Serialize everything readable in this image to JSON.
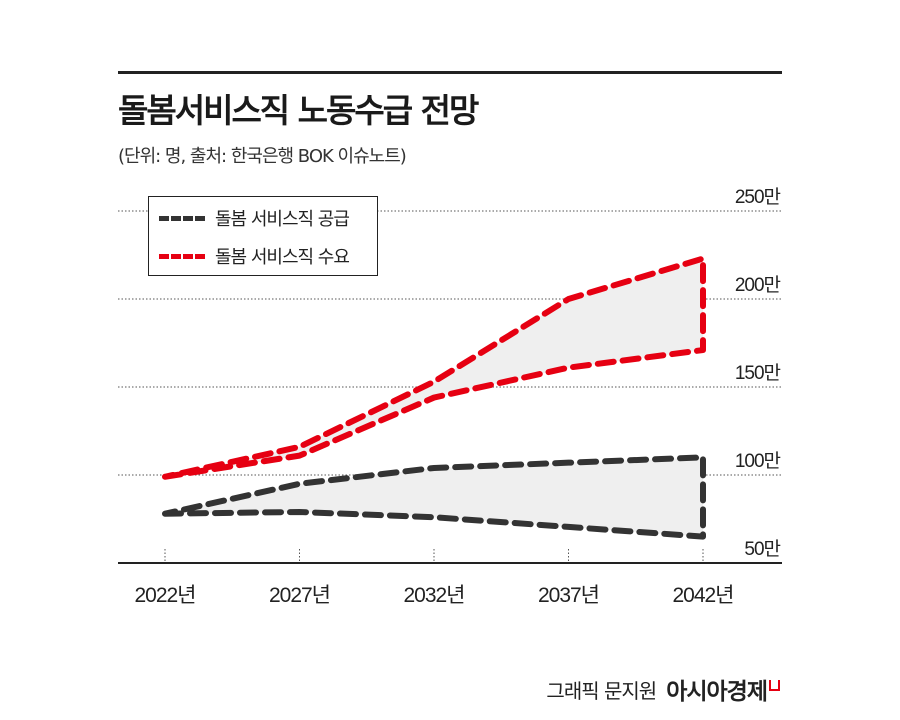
{
  "header": {
    "title": "돌봄서비스직 노동수급 전망",
    "subtitle": "(단위: 명, 출처: 한국은행 BOK 이슈노트)"
  },
  "footer": {
    "credit": "그래픽 문지원",
    "brand": "아시아경제"
  },
  "chart_data": {
    "type": "area",
    "title": "돌봄서비스직 노동수급 전망",
    "x": [
      "2022년",
      "2027년",
      "2032년",
      "2037년",
      "2042년"
    ],
    "y_ticks": [
      "50만",
      "100만",
      "150만",
      "200만",
      "250만"
    ],
    "ylim": [
      50,
      250
    ],
    "y_unit": "만",
    "grid": true,
    "legend_position": "top-left",
    "series": [
      {
        "name": "돌봄 서비스직 공급",
        "color": "#333333",
        "style": "dashed band",
        "upper": [
          78,
          95,
          104,
          107,
          110
        ],
        "lower": [
          78,
          79,
          76,
          70.5,
          65
        ]
      },
      {
        "name": "돌봄 서비스직 수요",
        "color": "#e60012",
        "style": "dashed band",
        "upper": [
          99,
          116,
          153,
          200,
          223
        ],
        "lower": [
          99,
          111,
          144,
          161,
          171
        ]
      }
    ],
    "band_fill": "#efefef"
  }
}
